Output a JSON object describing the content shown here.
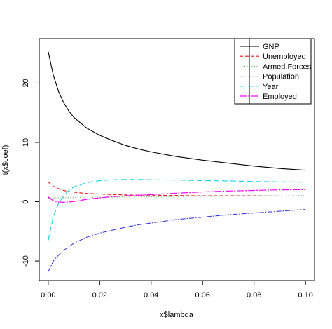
{
  "chart_data": {
    "type": "line",
    "title": "",
    "xlabel": "x$lambda",
    "ylabel": "t(x$coef)",
    "xlim": [
      -0.0035,
      0.1035
    ],
    "ylim": [
      -13.3,
      27.5
    ],
    "xticks": [
      0.0,
      0.02,
      0.04,
      0.06,
      0.08,
      0.1
    ],
    "xtick_labels": [
      "0.00",
      "0.02",
      "0.04",
      "0.06",
      "0.08",
      "0.10"
    ],
    "yticks": [
      -10,
      0,
      10,
      20
    ],
    "ytick_labels": [
      "-10",
      "0",
      "10",
      "20"
    ],
    "grid": false,
    "legend_position": "top-right",
    "x": [
      0.0,
      0.002,
      0.004,
      0.006,
      0.008,
      0.01,
      0.015,
      0.02,
      0.025,
      0.03,
      0.035,
      0.04,
      0.05,
      0.06,
      0.07,
      0.08,
      0.09,
      0.1
    ],
    "series": [
      {
        "name": "GNP",
        "color": "#000000",
        "dash": "",
        "width": 1.1,
        "values": [
          25.3,
          21.3,
          18.6,
          16.7,
          15.3,
          14.2,
          12.4,
          11.2,
          10.3,
          9.5,
          8.9,
          8.4,
          7.6,
          7.0,
          6.5,
          6.0,
          5.6,
          5.3
        ]
      },
      {
        "name": "Unemployed",
        "color": "#e41a1c",
        "dash": "5,3",
        "width": 1.1,
        "values": [
          3.3,
          2.6,
          2.2,
          1.9,
          1.7,
          1.6,
          1.4,
          1.3,
          1.2,
          1.15,
          1.1,
          1.1,
          1.05,
          1.0,
          1.0,
          1.0,
          0.95,
          0.95
        ]
      },
      {
        "name": "Armed.Forces",
        "color": "#4daf4a",
        "dash": "1,2.5",
        "width": 1.1,
        "values": [
          0.6,
          0.62,
          0.64,
          0.66,
          0.68,
          0.7,
          0.72,
          0.75,
          0.78,
          0.8,
          0.83,
          0.85,
          0.88,
          0.92,
          0.95,
          0.98,
          1.0,
          1.03
        ]
      },
      {
        "name": "Population",
        "color": "#3a3adb",
        "dash": "7,2,1.5,2",
        "width": 1.1,
        "values": [
          -11.8,
          -10.0,
          -9.0,
          -8.2,
          -7.6,
          -7.0,
          -6.0,
          -5.3,
          -4.8,
          -4.3,
          -3.9,
          -3.6,
          -3.0,
          -2.6,
          -2.2,
          -1.9,
          -1.6,
          -1.3
        ]
      },
      {
        "name": "Year",
        "color": "#22d3e6",
        "dash": "8,4",
        "width": 1.2,
        "values": [
          -6.5,
          -2.5,
          -0.3,
          1.0,
          1.9,
          2.5,
          3.2,
          3.55,
          3.7,
          3.75,
          3.75,
          3.7,
          3.65,
          3.55,
          3.5,
          3.4,
          3.35,
          3.3
        ]
      },
      {
        "name": "Employed",
        "color": "#ff00ff",
        "dash": "10,2,2,2",
        "width": 1.2,
        "values": [
          0.8,
          0.15,
          -0.05,
          -0.1,
          -0.05,
          0.05,
          0.4,
          0.65,
          0.85,
          1.0,
          1.1,
          1.2,
          1.45,
          1.65,
          1.8,
          1.9,
          2.0,
          2.05
        ]
      }
    ]
  }
}
